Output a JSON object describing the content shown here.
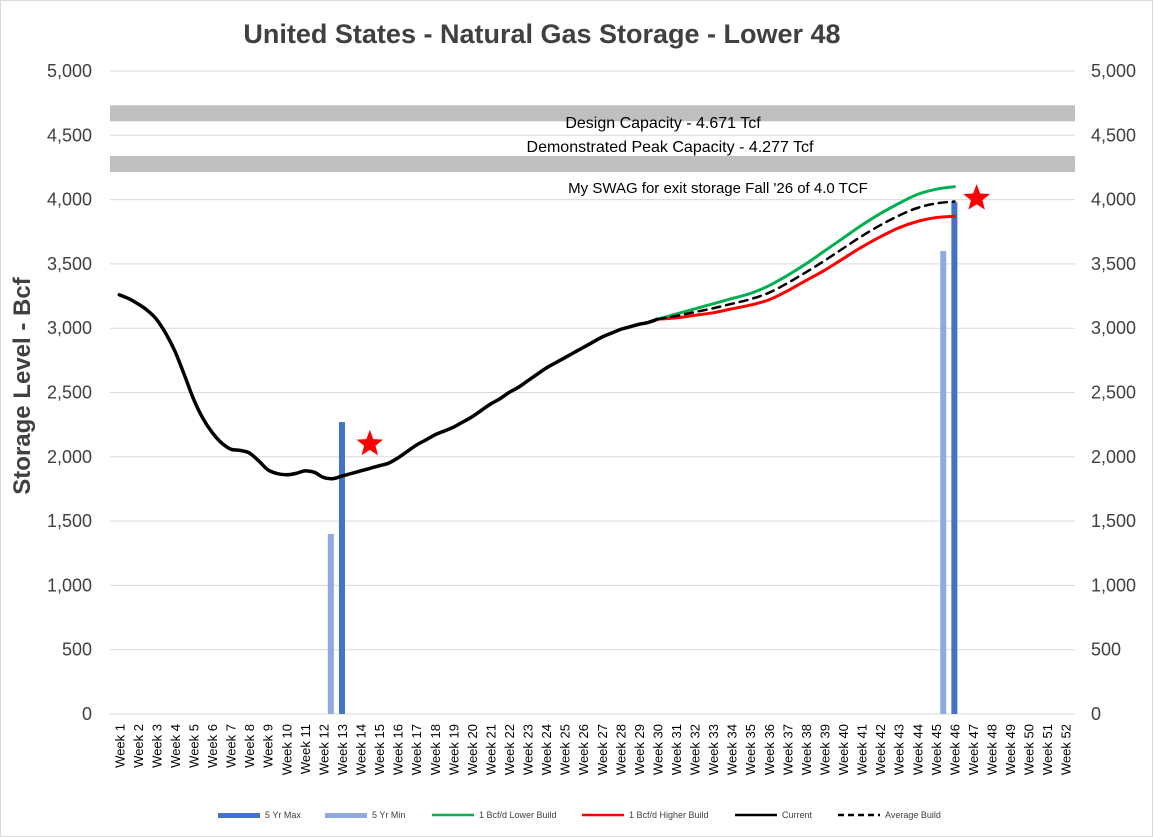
{
  "chart_data": {
    "type": "line",
    "title": "United States - Natural Gas Storage - Lower 48",
    "ylabel": "Storage Level - Bcf",
    "xlabel": "",
    "ylim": [
      0,
      5000
    ],
    "yticks": [
      0,
      500,
      1000,
      1500,
      2000,
      2500,
      3000,
      3500,
      4000,
      4500,
      5000
    ],
    "ytick_labels": [
      "0",
      "500",
      "1,000",
      "1,500",
      "2,000",
      "2,500",
      "3,000",
      "3,500",
      "4,000",
      "4,500",
      "5,000"
    ],
    "secondary_axis": true,
    "grid": true,
    "legend_position": "bottom",
    "categories": [
      "Week 1",
      "Week 2",
      "Week 3",
      "Week 4",
      "Week 5",
      "Week 6",
      "Week 7",
      "Week 8",
      "Week 9",
      "Week 10",
      "Week 11",
      "Week 12",
      "Week 13",
      "Week 14",
      "Week 15",
      "Week 16",
      "Week 17",
      "Week 18",
      "Week 19",
      "Week 20",
      "Week 21",
      "Week 22",
      "Week 23",
      "Week 24",
      "Week 25",
      "Week 26",
      "Week 27",
      "Week 28",
      "Week 29",
      "Week 30",
      "Week 31",
      "Week 32",
      "Week 33",
      "Week 34",
      "Week 35",
      "Week 36",
      "Week 37",
      "Week 38",
      "Week 39",
      "Week 40",
      "Week 41",
      "Week 42",
      "Week 43",
      "Week 44",
      "Week 45",
      "Week 46",
      "Week 47",
      "Week 48",
      "Week 49",
      "Week 50",
      "Week 51",
      "Week 52"
    ],
    "bars": [
      {
        "name": "5 Yr Max",
        "color": "#4472c4",
        "points": [
          {
            "week": 13,
            "value": 2270
          },
          {
            "week": 46,
            "value": 3980
          }
        ]
      },
      {
        "name": "5 Yr Min",
        "color": "#8faadc",
        "points": [
          {
            "week": 12.4,
            "value": 1400
          },
          {
            "week": 45.4,
            "value": 3600
          }
        ]
      }
    ],
    "series": [
      {
        "name": "Current",
        "color": "#000000",
        "dash": "solid",
        "x": [
          1,
          1.5,
          2,
          2.5,
          3,
          3.5,
          4,
          4.5,
          5,
          5.5,
          6,
          6.5,
          7,
          7.5,
          8,
          8.5,
          9,
          9.5,
          10,
          10.5,
          11,
          11.5,
          12,
          12.5,
          13,
          13.5,
          14,
          14.5,
          15,
          15.5,
          16,
          16.5,
          17,
          17.5,
          18,
          18.5,
          19,
          19.5,
          20,
          20.5,
          21,
          21.5,
          22,
          22.5,
          23,
          23.5,
          24,
          24.5,
          25,
          25.5,
          26,
          26.5,
          27,
          27.5,
          28,
          28.5,
          29,
          29.5,
          30
        ],
        "values": [
          3260,
          3230,
          3190,
          3140,
          3070,
          2960,
          2820,
          2640,
          2450,
          2300,
          2190,
          2110,
          2060,
          2050,
          2030,
          1970,
          1900,
          1870,
          1860,
          1870,
          1890,
          1880,
          1840,
          1830,
          1850,
          1870,
          1890,
          1910,
          1930,
          1950,
          1990,
          2040,
          2090,
          2130,
          2170,
          2200,
          2230,
          2270,
          2310,
          2360,
          2410,
          2450,
          2500,
          2540,
          2590,
          2640,
          2690,
          2730,
          2770,
          2810,
          2850,
          2890,
          2930,
          2960,
          2990,
          3010,
          3030,
          3045,
          3070
        ]
      },
      {
        "name": "1 Bcf/d Lower Build",
        "color": "#00b050",
        "dash": "solid",
        "x": [
          30,
          31,
          32,
          33,
          34,
          35,
          36,
          37,
          38,
          39,
          40,
          41,
          42,
          43,
          44,
          45,
          46
        ],
        "values": [
          3070,
          3110,
          3150,
          3190,
          3230,
          3270,
          3330,
          3410,
          3500,
          3600,
          3700,
          3800,
          3890,
          3970,
          4040,
          4080,
          4100
        ]
      },
      {
        "name": "1 Bcf/d Higher Build",
        "color": "#ff0000",
        "dash": "solid",
        "x": [
          30,
          31,
          32,
          33,
          34,
          35,
          36,
          37,
          38,
          39,
          40,
          41,
          42,
          43,
          44,
          45,
          46
        ],
        "values": [
          3070,
          3080,
          3100,
          3120,
          3150,
          3180,
          3220,
          3290,
          3370,
          3450,
          3540,
          3630,
          3710,
          3780,
          3830,
          3860,
          3870
        ]
      },
      {
        "name": "Average Build",
        "color": "#000000",
        "dash": "dashed",
        "x": [
          30,
          31,
          32,
          33,
          34,
          35,
          36,
          37,
          38,
          39,
          40,
          41,
          42,
          43,
          44,
          45,
          46
        ],
        "values": [
          3070,
          3095,
          3125,
          3155,
          3190,
          3225,
          3275,
          3350,
          3435,
          3525,
          3620,
          3715,
          3800,
          3875,
          3935,
          3970,
          3985
        ]
      }
    ],
    "markers": [
      {
        "type": "star",
        "color": "#ff0000",
        "week": 14.5,
        "value": 2100
      },
      {
        "type": "star",
        "color": "#ff0000",
        "week": 47.2,
        "value": 4010
      }
    ],
    "reference_bands": [
      {
        "value": 4671,
        "color": "#bfbfbf"
      },
      {
        "value": 4277,
        "color": "#bfbfbf"
      }
    ],
    "annotations": [
      {
        "text": "Design Capacity -  4.671 Tcf"
      },
      {
        "text": "Demonstrated Peak Capacity -  4.277 Tcf"
      },
      {
        "text": "My SWAG for exit storage Fall '26 of 4.0 TCF"
      }
    ],
    "legend": [
      "5 Yr Max",
      "5 Yr Min",
      "1 Bcf/d Lower Build",
      "1 Bcf/d Higher Build",
      "Current",
      "Average Build"
    ]
  }
}
